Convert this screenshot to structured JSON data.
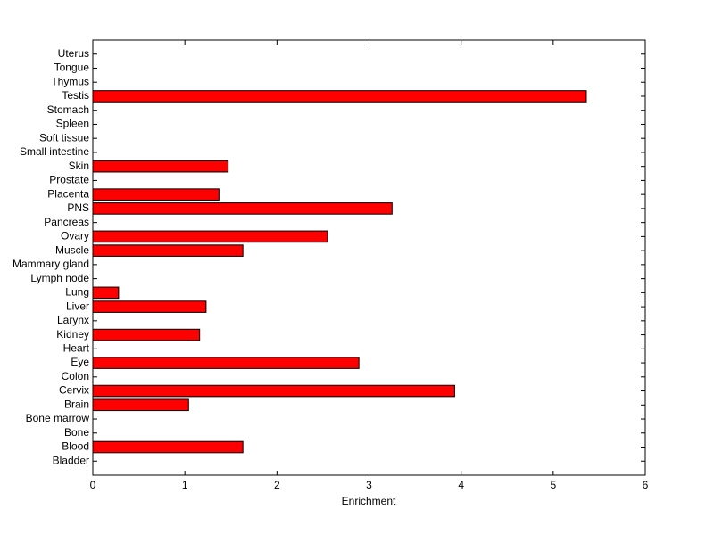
{
  "chart_data": {
    "type": "barh",
    "categories": [
      "Bladder",
      "Blood",
      "Bone",
      "Bone marrow",
      "Brain",
      "Cervix",
      "Colon",
      "Eye",
      "Heart",
      "Kidney",
      "Larynx",
      "Liver",
      "Lung",
      "Lymph node",
      "Mammary gland",
      "Muscle",
      "Ovary",
      "Pancreas",
      "PNS",
      "Placenta",
      "Prostate",
      "Skin",
      "Small intestine",
      "Soft tissue",
      "Spleen",
      "Stomach",
      "Testis",
      "Thymus",
      "Tongue",
      "Uterus"
    ],
    "values": [
      0,
      1.63,
      0,
      0,
      1.04,
      3.93,
      0,
      2.89,
      0,
      1.16,
      0,
      1.23,
      0.28,
      0,
      0,
      1.63,
      2.55,
      0,
      3.25,
      1.37,
      0,
      1.47,
      0,
      0,
      0,
      0,
      5.36,
      0,
      0,
      0
    ],
    "color": "#ff0000",
    "xlabel": "Enrichment",
    "xlim": [
      0,
      6
    ],
    "xticks": [
      0,
      1,
      2,
      3,
      4,
      5,
      6
    ]
  }
}
